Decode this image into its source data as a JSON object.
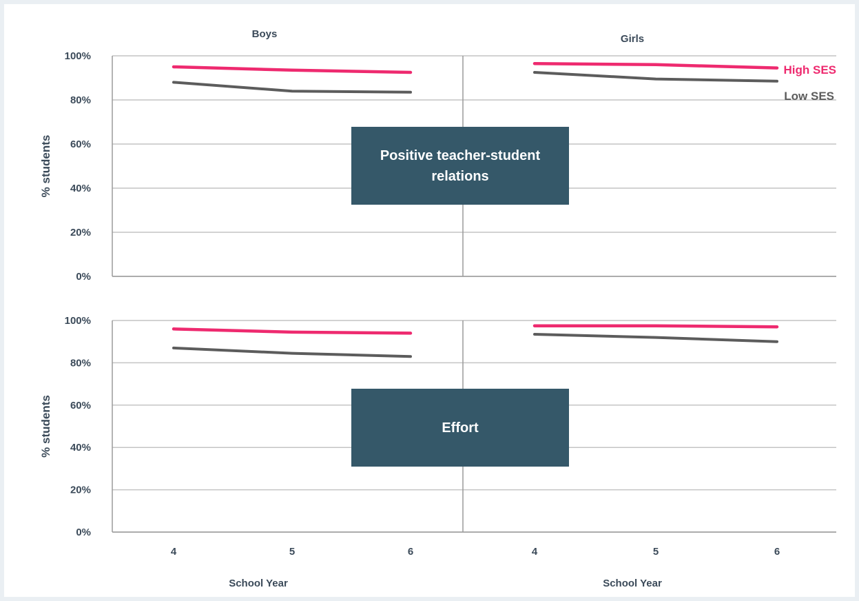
{
  "colors": {
    "high_ses": "#ee2a6f",
    "low_ses": "#5c5c5c",
    "grid": "#c4c4c4",
    "axis": "#9a9a9a",
    "panel_box": "#355869"
  },
  "chart_data": {
    "type": "line",
    "groups": [
      "Boys",
      "Girls"
    ],
    "categories": [
      "4",
      "5",
      "6"
    ],
    "ylabel": "% students",
    "xlabel": "School Year",
    "ylim": [
      0,
      100
    ],
    "yticks": [
      "0%",
      "20%",
      "40%",
      "60%",
      "80%",
      "100%"
    ],
    "legend": {
      "placement": "top-right",
      "entries": [
        "High SES",
        "Low SES"
      ]
    },
    "grid": true,
    "panels": [
      {
        "label": "Positive teacher-student relations",
        "series": [
          {
            "name": "High SES",
            "boys": [
              95,
              93.5,
              92.5
            ],
            "girls": [
              96.5,
              96,
              94.5
            ]
          },
          {
            "name": "Low SES",
            "boys": [
              88,
              84,
              83.5
            ],
            "girls": [
              92.5,
              89.5,
              88.5
            ]
          }
        ]
      },
      {
        "label": "Effort",
        "series": [
          {
            "name": "High SES",
            "boys": [
              96,
              94.5,
              94
            ],
            "girls": [
              97.5,
              97.5,
              97
            ]
          },
          {
            "name": "Low SES",
            "boys": [
              87,
              84.5,
              83
            ],
            "girls": [
              93.5,
              92,
              90
            ]
          }
        ]
      }
    ]
  }
}
